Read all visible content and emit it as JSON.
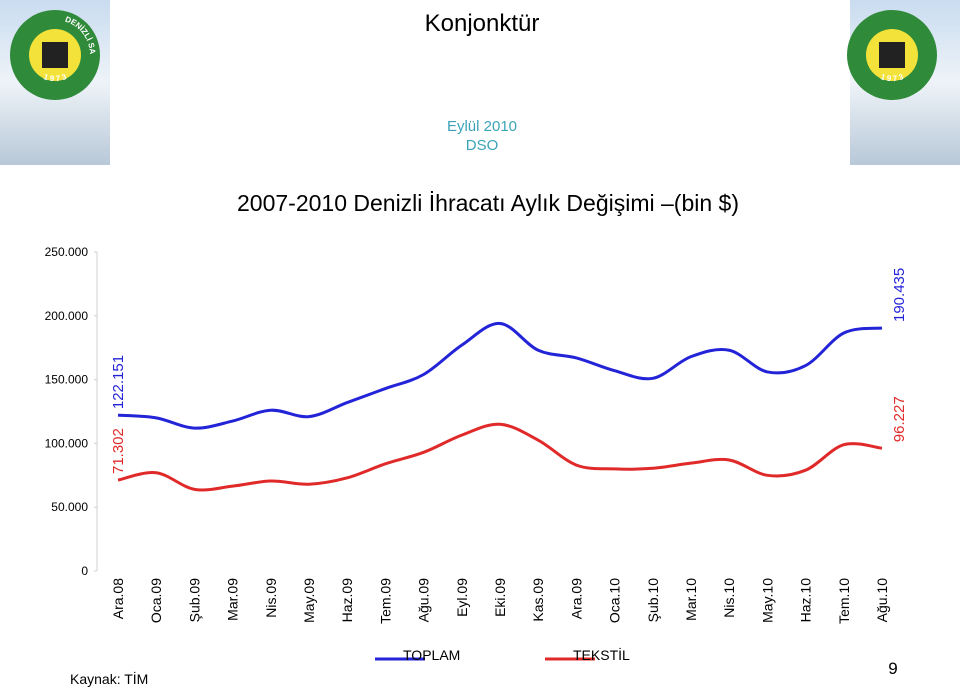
{
  "header": {
    "title": "Konjonktür",
    "date": "Eylül 2010",
    "org": "DSO",
    "logo_text": "DENİZLİ SANAYİ ODASI",
    "logo_year": "1 9 7 3"
  },
  "chart_data": {
    "type": "line",
    "title": "2007-2010 Denizli İhracatı Aylık Değişimi –(bin $)",
    "categories": [
      "Ara.08",
      "Oca.09",
      "Şub.09",
      "Mar.09",
      "Nis.09",
      "May.09",
      "Haz.09",
      "Tem.09",
      "Ağu.09",
      "Eyl.09",
      "Eki.09",
      "Kas.09",
      "Ara.09",
      "Oca.10",
      "Şub.10",
      "Mar.10",
      "Nis.10",
      "May.10",
      "Haz.10",
      "Tem.10",
      "Ağu.10"
    ],
    "series": [
      {
        "name": "TOPLAM",
        "color": "#2323d8",
        "values": [
          122151,
          120000,
          112000,
          117500,
          126000,
          121000,
          132000,
          143000,
          154000,
          177000,
          194000,
          173000,
          167000,
          157000,
          151000,
          168000,
          173000,
          156000,
          161000,
          186500,
          190435
        ],
        "value_labels": [
          "122.151",
          null,
          null,
          null,
          null,
          null,
          null,
          null,
          null,
          null,
          null,
          null,
          null,
          null,
          null,
          null,
          null,
          null,
          null,
          null,
          "190.435"
        ]
      },
      {
        "name": "TEKSTİL",
        "color": "#e02a2a",
        "values": [
          71302,
          77000,
          64000,
          66500,
          70500,
          68000,
          73000,
          84000,
          93000,
          106500,
          115000,
          102500,
          83000,
          80000,
          80500,
          84500,
          87000,
          75000,
          79000,
          99000,
          96227
        ],
        "value_labels": [
          "71.302",
          null,
          null,
          null,
          null,
          null,
          null,
          null,
          null,
          null,
          null,
          null,
          null,
          null,
          null,
          null,
          null,
          null,
          null,
          null,
          "96.227"
        ]
      }
    ],
    "ylim": [
      0,
      250000
    ],
    "yticks": [
      0,
      {
        "value": 50000,
        "label": "50.000"
      },
      {
        "value": 100000,
        "label": "100.000"
      },
      {
        "value": 150000,
        "label": "150.000"
      },
      {
        "value": 200000,
        "label": "200.000"
      },
      {
        "value": 250000,
        "label": "250.000"
      }
    ],
    "grid": false,
    "legend": "bottom",
    "source": "Kaynak: TİM",
    "page_number": "9"
  }
}
